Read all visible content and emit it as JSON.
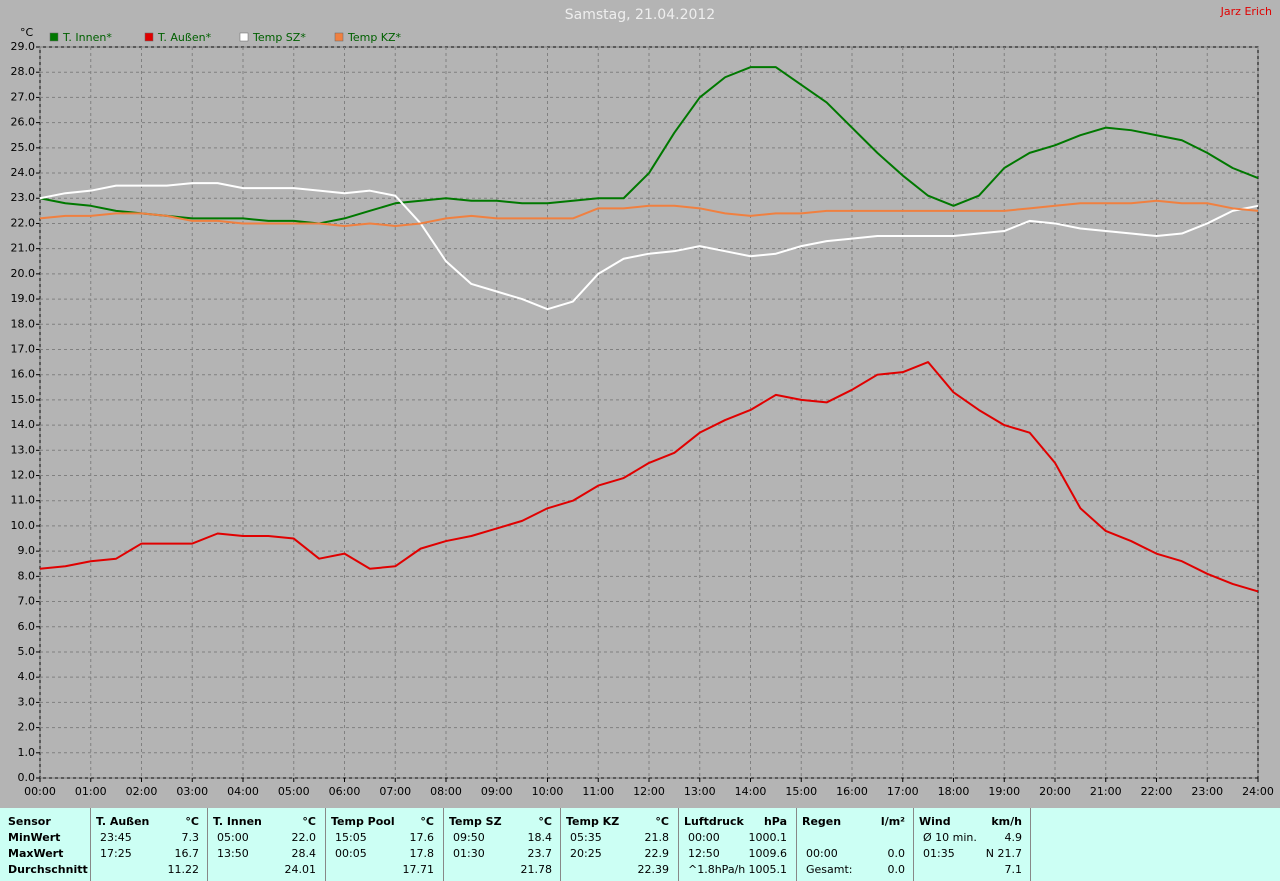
{
  "chart_data": {
    "type": "line",
    "title": "Samstag, 21.04.2012",
    "author": "Jarz Erich",
    "y_unit": "°C",
    "xlim": [
      0,
      24
    ],
    "ylim": [
      0,
      29
    ],
    "grid": true,
    "xticks": [
      {
        "value": 0,
        "label": "00:00"
      },
      {
        "value": 1,
        "label": "01:00"
      },
      {
        "value": 2,
        "label": "02:00"
      },
      {
        "value": 3,
        "label": "03:00"
      },
      {
        "value": 4,
        "label": "04:00"
      },
      {
        "value": 5,
        "label": "05:00"
      },
      {
        "value": 6,
        "label": "06:00"
      },
      {
        "value": 7,
        "label": "07:00"
      },
      {
        "value": 8,
        "label": "08:00"
      },
      {
        "value": 9,
        "label": "09:00"
      },
      {
        "value": 10,
        "label": "10:00"
      },
      {
        "value": 11,
        "label": "11:00"
      },
      {
        "value": 12,
        "label": "12:00"
      },
      {
        "value": 13,
        "label": "13:00"
      },
      {
        "value": 14,
        "label": "14:00"
      },
      {
        "value": 15,
        "label": "15:00"
      },
      {
        "value": 16,
        "label": "16:00"
      },
      {
        "value": 17,
        "label": "17:00"
      },
      {
        "value": 18,
        "label": "18:00"
      },
      {
        "value": 19,
        "label": "19:00"
      },
      {
        "value": 20,
        "label": "20:00"
      },
      {
        "value": 21,
        "label": "21:00"
      },
      {
        "value": 22,
        "label": "22:00"
      },
      {
        "value": 23,
        "label": "23:00"
      },
      {
        "value": 24,
        "label": "24:00"
      }
    ],
    "yticks": [
      {
        "value": 0,
        "label": "0.0"
      },
      {
        "value": 1,
        "label": "1.0"
      },
      {
        "value": 2,
        "label": "2.0"
      },
      {
        "value": 3,
        "label": "3.0"
      },
      {
        "value": 4,
        "label": "4.0"
      },
      {
        "value": 5,
        "label": "5.0"
      },
      {
        "value": 6,
        "label": "6.0"
      },
      {
        "value": 7,
        "label": "7.0"
      },
      {
        "value": 8,
        "label": "8.0"
      },
      {
        "value": 9,
        "label": "9.0"
      },
      {
        "value": 10,
        "label": "10.0"
      },
      {
        "value": 11,
        "label": "11.0"
      },
      {
        "value": 12,
        "label": "12.0"
      },
      {
        "value": 13,
        "label": "13.0"
      },
      {
        "value": 14,
        "label": "14.0"
      },
      {
        "value": 15,
        "label": "15.0"
      },
      {
        "value": 16,
        "label": "16.0"
      },
      {
        "value": 17,
        "label": "17.0"
      },
      {
        "value": 18,
        "label": "18.0"
      },
      {
        "value": 19,
        "label": "19.0"
      },
      {
        "value": 20,
        "label": "20.0"
      },
      {
        "value": 21,
        "label": "21.0"
      },
      {
        "value": 22,
        "label": "22.0"
      },
      {
        "value": 23,
        "label": "23.0"
      },
      {
        "value": 24,
        "label": "24.0"
      },
      {
        "value": 25,
        "label": "25.0"
      },
      {
        "value": 26,
        "label": "26.0"
      },
      {
        "value": 27,
        "label": "27.0"
      },
      {
        "value": 28,
        "label": "28.0"
      },
      {
        "value": 29,
        "label": "29.0"
      }
    ],
    "x": [
      0,
      0.5,
      1,
      1.5,
      2,
      2.5,
      3,
      3.5,
      4,
      4.5,
      5,
      5.5,
      6,
      6.5,
      7,
      7.5,
      8,
      8.5,
      9,
      9.5,
      10,
      10.5,
      11,
      11.5,
      12,
      12.5,
      13,
      13.5,
      14,
      14.5,
      15,
      15.5,
      16,
      16.5,
      17,
      17.5,
      18,
      18.5,
      19,
      19.5,
      20,
      20.5,
      21,
      21.5,
      22,
      22.5,
      23,
      23.5,
      24
    ],
    "series": [
      {
        "name": "T. Innen*",
        "color": "#007800",
        "values": [
          23.0,
          22.8,
          22.7,
          22.5,
          22.4,
          22.3,
          22.2,
          22.2,
          22.2,
          22.1,
          22.1,
          22.0,
          22.2,
          22.5,
          22.8,
          22.9,
          23.0,
          22.9,
          22.9,
          22.8,
          22.8,
          22.9,
          23.0,
          23.0,
          24.0,
          25.6,
          27.0,
          27.8,
          28.2,
          28.2,
          27.5,
          26.8,
          25.8,
          24.8,
          23.9,
          23.1,
          22.7,
          23.1,
          24.2,
          24.8,
          25.1,
          25.5,
          25.8,
          25.7,
          25.5,
          25.3,
          24.8,
          24.2,
          23.8
        ]
      },
      {
        "name": "T. Außen*",
        "color": "#e00000",
        "values": [
          8.3,
          8.4,
          8.6,
          8.7,
          9.3,
          9.3,
          9.3,
          9.7,
          9.6,
          9.6,
          9.5,
          8.7,
          8.9,
          8.3,
          8.4,
          9.1,
          9.4,
          9.6,
          9.9,
          10.2,
          10.7,
          11.0,
          11.6,
          11.9,
          12.5,
          12.9,
          13.7,
          14.2,
          14.6,
          15.2,
          15.0,
          14.9,
          15.4,
          16.0,
          16.1,
          16.5,
          15.3,
          14.6,
          14.0,
          13.7,
          12.5,
          10.7,
          9.8,
          9.4,
          8.9,
          8.6,
          8.1,
          7.7,
          7.4
        ]
      },
      {
        "name": "Temp SZ*",
        "color": "#ffffff",
        "values": [
          23.0,
          23.2,
          23.3,
          23.5,
          23.5,
          23.5,
          23.6,
          23.6,
          23.4,
          23.4,
          23.4,
          23.3,
          23.2,
          23.3,
          23.1,
          22.0,
          20.5,
          19.6,
          19.3,
          19.0,
          18.6,
          18.9,
          20.0,
          20.6,
          20.8,
          20.9,
          21.1,
          20.9,
          20.7,
          20.8,
          21.1,
          21.3,
          21.4,
          21.5,
          21.5,
          21.5,
          21.5,
          21.6,
          21.7,
          22.1,
          22.0,
          21.8,
          21.7,
          21.6,
          21.5,
          21.6,
          22.0,
          22.5,
          22.7
        ]
      },
      {
        "name": "Temp KZ*",
        "color": "#f08040",
        "values": [
          22.2,
          22.3,
          22.3,
          22.4,
          22.4,
          22.3,
          22.1,
          22.1,
          22.0,
          22.0,
          22.0,
          22.0,
          21.9,
          22.0,
          21.9,
          22.0,
          22.2,
          22.3,
          22.2,
          22.2,
          22.2,
          22.2,
          22.6,
          22.6,
          22.7,
          22.7,
          22.6,
          22.4,
          22.3,
          22.4,
          22.4,
          22.5,
          22.5,
          22.5,
          22.5,
          22.5,
          22.5,
          22.5,
          22.5,
          22.6,
          22.7,
          22.8,
          22.8,
          22.8,
          22.9,
          22.8,
          22.8,
          22.6,
          22.5
        ]
      }
    ]
  },
  "table": {
    "row_labels": [
      "Sensor",
      "MinWert",
      "MaxWert",
      "Durchschnitt"
    ],
    "columns": [
      {
        "header": "T. Außen",
        "unit": "°C",
        "cells": [
          [
            "23:45",
            "7.3"
          ],
          [
            "17:25",
            "16.7"
          ],
          [
            null,
            "11.22"
          ]
        ]
      },
      {
        "header": "T. Innen",
        "unit": "°C",
        "cells": [
          [
            "05:00",
            "22.0"
          ],
          [
            "13:50",
            "28.4"
          ],
          [
            null,
            "24.01"
          ]
        ]
      },
      {
        "header": "Temp Pool",
        "unit": "°C",
        "cells": [
          [
            "15:05",
            "17.6"
          ],
          [
            "00:05",
            "17.8"
          ],
          [
            null,
            "17.71"
          ]
        ]
      },
      {
        "header": "Temp SZ",
        "unit": "°C",
        "cells": [
          [
            "09:50",
            "18.4"
          ],
          [
            "01:30",
            "23.7"
          ],
          [
            null,
            "21.78"
          ]
        ]
      },
      {
        "header": "Temp KZ",
        "unit": "°C",
        "cells": [
          [
            "05:35",
            "21.8"
          ],
          [
            "20:25",
            "22.9"
          ],
          [
            null,
            "22.39"
          ]
        ]
      },
      {
        "header": "Luftdruck",
        "unit": "hPa",
        "cells": [
          [
            "00:00",
            "1000.1"
          ],
          [
            "12:50",
            "1009.6"
          ],
          [
            "^1.8hPa/h",
            "1005.1"
          ]
        ]
      },
      {
        "header": "Regen",
        "unit": "l/m²",
        "cells": [
          [
            null,
            null
          ],
          [
            "00:00",
            "0.0"
          ],
          [
            "Gesamt:",
            "0.0"
          ]
        ]
      },
      {
        "header": "Wind",
        "unit": "km/h",
        "cells": [
          [
            "Ø 10 min.",
            "4.9"
          ],
          [
            "01:35",
            "N 21.7"
          ],
          [
            null,
            "7.1"
          ]
        ]
      }
    ]
  }
}
